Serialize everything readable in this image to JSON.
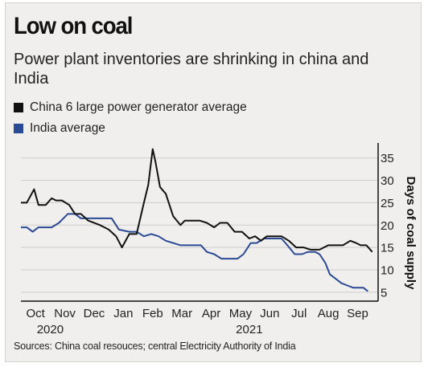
{
  "title": "Low on coal",
  "subtitle": "Power plant inventories are shrinking in china and India",
  "source": "Sources: China coal resouces; central Electricity Authority of India",
  "colors": {
    "china": "#111111",
    "india": "#2b4a96",
    "background": "#f0efed",
    "grid": "#cfcdca"
  },
  "chart_data": {
    "type": "line",
    "ylabel": "Days of coal supply",
    "ylim": [
      3,
      38
    ],
    "yticks": [
      5,
      10,
      15,
      20,
      25,
      30,
      35
    ],
    "y_axis_side": "right",
    "grid": true,
    "legend_placement": "top-left",
    "x_month_ticks": [
      {
        "label": "Oct",
        "x": 0.5
      },
      {
        "label": "Nov",
        "x": 1.5
      },
      {
        "label": "Dec",
        "x": 2.5
      },
      {
        "label": "Jan",
        "x": 3.5
      },
      {
        "label": "Feb",
        "x": 4.5
      },
      {
        "label": "Mar",
        "x": 5.5
      },
      {
        "label": "Apr",
        "x": 6.5
      },
      {
        "label": "May",
        "x": 7.5
      },
      {
        "label": "Jun",
        "x": 8.5
      },
      {
        "label": "Jul",
        "x": 9.5
      },
      {
        "label": "Aug",
        "x": 10.5
      },
      {
        "label": "Sep",
        "x": 11.5
      }
    ],
    "x_year_labels": [
      {
        "label": "2020",
        "x": 1.0
      },
      {
        "label": "2021",
        "x": 7.8
      }
    ],
    "xlim": [
      0,
      12.2
    ],
    "series": [
      {
        "name": "China 6 large power generator average",
        "color": "#111111",
        "points": [
          [
            0.0,
            25
          ],
          [
            0.2,
            25
          ],
          [
            0.45,
            28
          ],
          [
            0.6,
            24.5
          ],
          [
            0.85,
            24.5
          ],
          [
            1.05,
            26
          ],
          [
            1.2,
            25.5
          ],
          [
            1.4,
            25.5
          ],
          [
            1.65,
            24.5
          ],
          [
            1.85,
            22.5
          ],
          [
            2.05,
            22.5
          ],
          [
            2.3,
            21
          ],
          [
            2.7,
            20
          ],
          [
            3.0,
            19
          ],
          [
            3.25,
            17.5
          ],
          [
            3.45,
            15
          ],
          [
            3.7,
            18
          ],
          [
            3.95,
            18
          ],
          [
            4.2,
            25
          ],
          [
            4.35,
            29
          ],
          [
            4.5,
            37
          ],
          [
            4.6,
            34
          ],
          [
            4.75,
            28.5
          ],
          [
            4.95,
            27
          ],
          [
            5.2,
            22
          ],
          [
            5.45,
            20
          ],
          [
            5.6,
            21
          ],
          [
            5.8,
            21
          ],
          [
            6.1,
            21
          ],
          [
            6.35,
            20.5
          ],
          [
            6.6,
            19.5
          ],
          [
            6.8,
            20.5
          ],
          [
            7.05,
            20.5
          ],
          [
            7.3,
            18.5
          ],
          [
            7.55,
            18.5
          ],
          [
            7.8,
            17
          ],
          [
            8.0,
            17.5
          ],
          [
            8.2,
            16.5
          ],
          [
            8.4,
            17.5
          ],
          [
            8.7,
            17.5
          ],
          [
            8.9,
            17.5
          ],
          [
            9.15,
            16.5
          ],
          [
            9.4,
            15
          ],
          [
            9.65,
            15
          ],
          [
            9.9,
            14.5
          ],
          [
            10.2,
            14.5
          ],
          [
            10.5,
            15.5
          ],
          [
            10.75,
            15.5
          ],
          [
            11.0,
            15.5
          ],
          [
            11.25,
            16.5
          ],
          [
            11.45,
            16
          ],
          [
            11.6,
            15.5
          ],
          [
            11.8,
            15.5
          ],
          [
            12.0,
            14
          ]
        ]
      },
      {
        "name": "India average",
        "color": "#2b4a96",
        "points": [
          [
            0.0,
            19.5
          ],
          [
            0.2,
            19.5
          ],
          [
            0.4,
            18.5
          ],
          [
            0.6,
            19.5
          ],
          [
            0.85,
            19.5
          ],
          [
            1.05,
            19.5
          ],
          [
            1.3,
            20.5
          ],
          [
            1.6,
            22.5
          ],
          [
            1.85,
            22.5
          ],
          [
            2.05,
            21.5
          ],
          [
            2.3,
            21.5
          ],
          [
            2.55,
            21.5
          ],
          [
            2.85,
            21.5
          ],
          [
            3.1,
            21.5
          ],
          [
            3.35,
            19
          ],
          [
            3.7,
            18.5
          ],
          [
            3.95,
            18.5
          ],
          [
            4.2,
            17.5
          ],
          [
            4.45,
            18
          ],
          [
            4.7,
            17.5
          ],
          [
            4.95,
            16.5
          ],
          [
            5.2,
            16
          ],
          [
            5.45,
            15.5
          ],
          [
            5.7,
            15.5
          ],
          [
            5.95,
            15.5
          ],
          [
            6.15,
            15.5
          ],
          [
            6.35,
            14
          ],
          [
            6.6,
            13.5
          ],
          [
            6.85,
            12.5
          ],
          [
            7.1,
            12.5
          ],
          [
            7.4,
            12.5
          ],
          [
            7.6,
            13.5
          ],
          [
            7.85,
            16
          ],
          [
            8.05,
            16
          ],
          [
            8.3,
            17
          ],
          [
            8.5,
            17
          ],
          [
            8.7,
            17
          ],
          [
            8.9,
            17
          ],
          [
            9.1,
            15.5
          ],
          [
            9.35,
            13.5
          ],
          [
            9.6,
            13.5
          ],
          [
            9.8,
            14
          ],
          [
            10.05,
            14
          ],
          [
            10.2,
            13.5
          ],
          [
            10.4,
            11.5
          ],
          [
            10.55,
            9
          ],
          [
            10.75,
            8
          ],
          [
            10.95,
            7
          ],
          [
            11.15,
            6.5
          ],
          [
            11.35,
            6
          ],
          [
            11.55,
            6
          ],
          [
            11.7,
            6
          ],
          [
            11.85,
            5.2
          ]
        ]
      }
    ]
  }
}
